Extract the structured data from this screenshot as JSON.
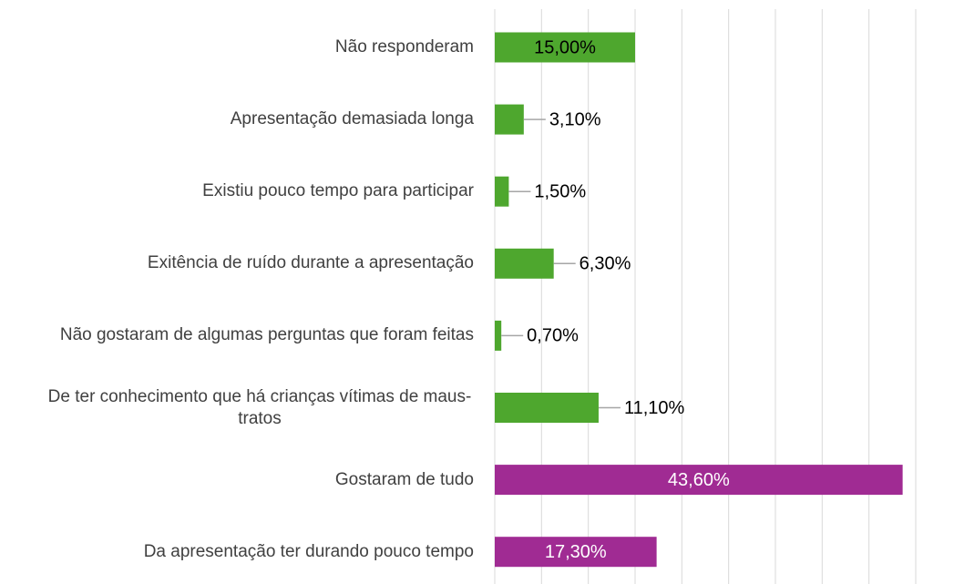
{
  "chart_data": {
    "type": "barh",
    "categories": [
      "Não responderam",
      "Apresentação demasiada longa",
      "Existiu pouco tempo para participar",
      "Exitência de ruído durante a apresentação",
      "Não gostaram de algumas perguntas que foram feitas",
      "De ter conhecimento que há crianças vítimas de maus-tratos",
      "Gostaram de tudo",
      "Da apresentação ter durando pouco tempo"
    ],
    "values": [
      15,
      3.1,
      1.5,
      6.3,
      0.7,
      11.1,
      43.6,
      17.3
    ],
    "value_labels": [
      "15,00%",
      "3,10%",
      "1,50%",
      "6,30%",
      "0,70%",
      "11,10%",
      "43,60%",
      "17,30%"
    ],
    "colors": [
      "#4ea72e",
      "#4ea72e",
      "#4ea72e",
      "#4ea72e",
      "#4ea72e",
      "#4ea72e",
      "#a02b93",
      "#a02b93"
    ],
    "xlim": [
      0,
      45
    ],
    "xticks": [
      0,
      5,
      10,
      15,
      20,
      25,
      30,
      35,
      40,
      45
    ],
    "grid": true
  }
}
